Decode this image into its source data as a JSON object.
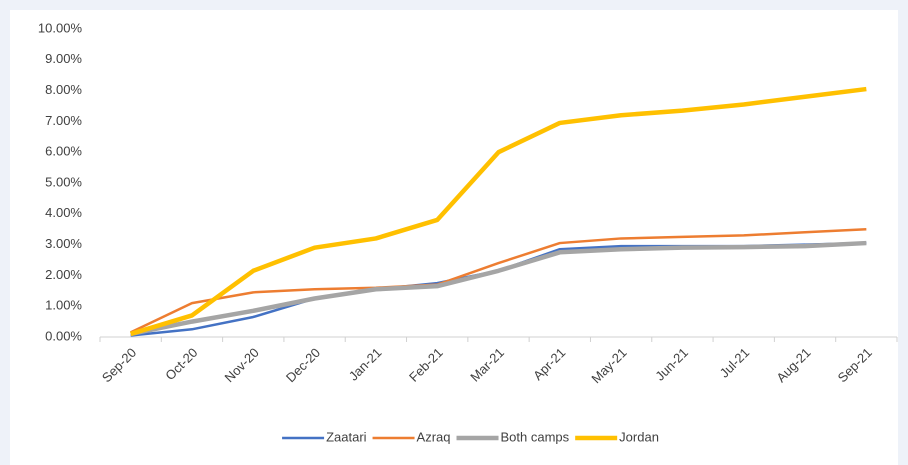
{
  "chart_data": {
    "type": "line",
    "categories": [
      "Sep-20",
      "Oct-20",
      "Nov-20",
      "Dec-20",
      "Jan-21",
      "Feb-21",
      "Mar-21",
      "Apr-21",
      "May-21",
      "Jun-21",
      "Jul-21",
      "Aug-21",
      "Sep-21"
    ],
    "series": [
      {
        "name": "Zaatari",
        "color": "#4472c4",
        "values": [
          0.05,
          0.25,
          0.65,
          1.25,
          1.55,
          1.75,
          2.15,
          2.85,
          2.95,
          2.95,
          2.95,
          3.0,
          3.05
        ]
      },
      {
        "name": "Azraq",
        "color": "#ed7d31",
        "values": [
          0.15,
          1.1,
          1.45,
          1.55,
          1.6,
          1.7,
          2.4,
          3.05,
          3.2,
          3.25,
          3.3,
          3.4,
          3.5
        ]
      },
      {
        "name": "Both camps",
        "color": "#a5a5a5",
        "values": [
          0.1,
          0.5,
          0.85,
          1.25,
          1.55,
          1.65,
          2.15,
          2.75,
          2.85,
          2.9,
          2.92,
          2.95,
          3.05
        ]
      },
      {
        "name": "Jordan",
        "color": "#ffc000",
        "values": [
          0.1,
          0.7,
          2.15,
          2.9,
          3.2,
          3.8,
          6.0,
          6.95,
          7.2,
          7.35,
          7.55,
          7.8,
          8.05
        ]
      }
    ],
    "ylim": [
      0,
      10
    ],
    "yticks": [
      {
        "value": 0,
        "label": "0.00%"
      },
      {
        "value": 1,
        "label": "1.00%"
      },
      {
        "value": 2,
        "label": "2.00%"
      },
      {
        "value": 3,
        "label": "3.00%"
      },
      {
        "value": 4,
        "label": "4.00%"
      },
      {
        "value": 5,
        "label": "5.00%"
      },
      {
        "value": 6,
        "label": "6.00%"
      },
      {
        "value": 7,
        "label": "7.00%"
      },
      {
        "value": 8,
        "label": "8.00%"
      },
      {
        "value": 9,
        "label": "9.00%"
      },
      {
        "value": 10,
        "label": "10.00%"
      }
    ],
    "legend": "bottom"
  }
}
